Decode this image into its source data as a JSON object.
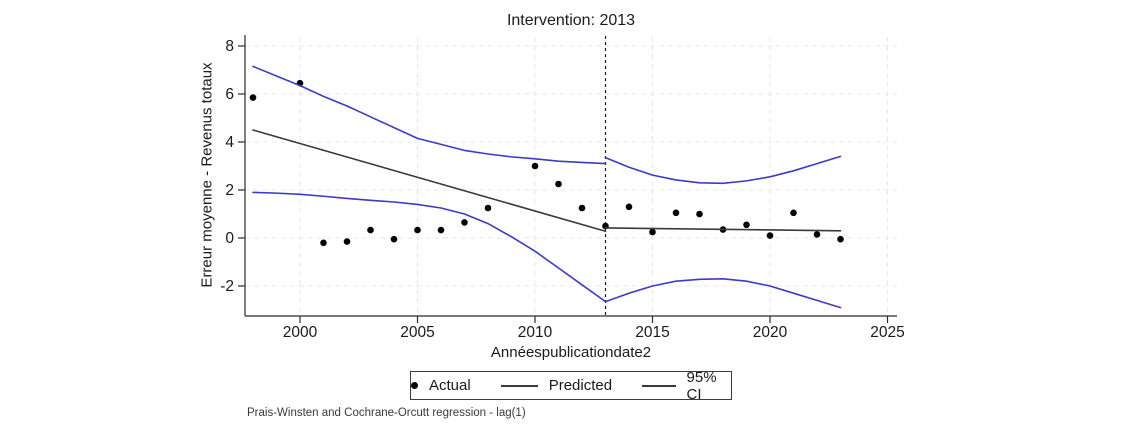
{
  "title": "Intervention: 2013",
  "axes": {
    "y_label": "Erreur moyenne - Revenus totaux",
    "x_label": "Annéespublicationdate2"
  },
  "legend": {
    "actual_label": "Actual",
    "predicted_label": "Predicted",
    "ci_label": "95% CI"
  },
  "caption": "Prais-Winsten and Cochrane-Orcutt regression - lag(1)",
  "colors": {
    "ci": "#3b3bc8",
    "predicted": "#3a3a3a",
    "actual": "#000000",
    "grid": "#e7e7e7",
    "axis": "#2a2a2a",
    "intervention": "#1a1a1a"
  },
  "chart_data": {
    "type": "line",
    "title": "Intervention: 2013",
    "xlabel": "Annéespublicationdate2",
    "ylabel": "Erreur moyenne - Revenus totaux",
    "xlim": [
      1997.7,
      2025.4
    ],
    "ylim": [
      -3.3,
      8.45
    ],
    "x_ticks": [
      2000,
      2005,
      2010,
      2015,
      2020,
      2025
    ],
    "y_ticks": [
      8,
      6,
      4,
      2,
      0,
      -2
    ],
    "grid": true,
    "legend_position": "bottom",
    "intervention_x": 2013,
    "series": [
      {
        "name": "Actual",
        "type": "scatter",
        "points": [
          [
            1998,
            5.85
          ],
          [
            2000,
            6.45
          ],
          [
            2001,
            -0.2
          ],
          [
            2002,
            -0.15
          ],
          [
            2003,
            0.33
          ],
          [
            2004,
            -0.05
          ],
          [
            2005,
            0.33
          ],
          [
            2006,
            0.33
          ],
          [
            2007,
            0.65
          ],
          [
            2008,
            1.25
          ],
          [
            2010,
            3.0
          ],
          [
            2011,
            2.25
          ],
          [
            2012,
            1.25
          ],
          [
            2013,
            0.5
          ],
          [
            2014,
            1.3
          ],
          [
            2015,
            0.25
          ],
          [
            2016,
            1.05
          ],
          [
            2017,
            1.0
          ],
          [
            2018,
            0.35
          ],
          [
            2019,
            0.55
          ],
          [
            2020,
            0.1
          ],
          [
            2021,
            1.05
          ],
          [
            2022,
            0.15
          ],
          [
            2023,
            -0.05
          ]
        ]
      },
      {
        "name": "Predicted",
        "type": "line",
        "segments": [
          [
            [
              1998,
              4.5
            ],
            [
              2013,
              0.28
            ]
          ],
          [
            [
              2013,
              0.42
            ],
            [
              2023,
              0.3
            ]
          ]
        ]
      },
      {
        "name": "95% CI",
        "type": "line",
        "segments": [
          [
            [
              1998,
              7.15
            ],
            [
              1999,
              6.75
            ],
            [
              2000,
              6.35
            ],
            [
              2001,
              5.9
            ],
            [
              2002,
              5.5
            ],
            [
              2003,
              5.05
            ],
            [
              2004,
              4.6
            ],
            [
              2005,
              4.15
            ],
            [
              2006,
              3.9
            ],
            [
              2007,
              3.65
            ],
            [
              2008,
              3.5
            ],
            [
              2009,
              3.38
            ],
            [
              2010,
              3.3
            ],
            [
              2011,
              3.2
            ],
            [
              2012,
              3.15
            ],
            [
              2013,
              3.1
            ]
          ],
          [
            [
              2013,
              3.35
            ],
            [
              2014,
              2.95
            ],
            [
              2015,
              2.62
            ],
            [
              2016,
              2.42
            ],
            [
              2017,
              2.3
            ],
            [
              2018,
              2.28
            ],
            [
              2019,
              2.38
            ],
            [
              2020,
              2.55
            ],
            [
              2021,
              2.8
            ],
            [
              2022,
              3.1
            ],
            [
              2023,
              3.4
            ]
          ],
          [
            [
              1998,
              1.9
            ],
            [
              1999,
              1.87
            ],
            [
              2000,
              1.82
            ],
            [
              2001,
              1.74
            ],
            [
              2002,
              1.65
            ],
            [
              2003,
              1.57
            ],
            [
              2004,
              1.5
            ],
            [
              2005,
              1.4
            ],
            [
              2006,
              1.25
            ],
            [
              2007,
              1.0
            ],
            [
              2008,
              0.6
            ],
            [
              2009,
              0.05
            ],
            [
              2010,
              -0.55
            ],
            [
              2011,
              -1.25
            ],
            [
              2012,
              -1.95
            ],
            [
              2013,
              -2.65
            ]
          ],
          [
            [
              2013,
              -2.65
            ],
            [
              2014,
              -2.3
            ],
            [
              2015,
              -2.0
            ],
            [
              2016,
              -1.8
            ],
            [
              2017,
              -1.72
            ],
            [
              2018,
              -1.7
            ],
            [
              2019,
              -1.8
            ],
            [
              2020,
              -2.0
            ],
            [
              2021,
              -2.3
            ],
            [
              2022,
              -2.6
            ],
            [
              2023,
              -2.9
            ]
          ]
        ]
      }
    ]
  }
}
